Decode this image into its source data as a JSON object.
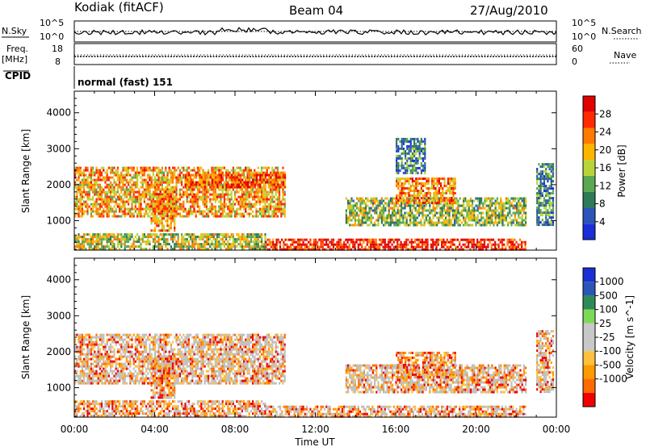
{
  "header": {
    "station": "Kodiak (fitACF)",
    "beam": "Beam 04",
    "date": "27/Aug/2010"
  },
  "top_panel": {
    "left_label_1": "N.Sky",
    "left_ticks_1": [
      "10^5",
      "10^0"
    ],
    "right_ticks_1": [
      "10^5",
      "10^0"
    ],
    "right_label_1": "N.Search",
    "left_label_2a": "Freq.",
    "left_label_2b": "[MHz]",
    "left_ticks_2": [
      "18",
      "8"
    ],
    "right_ticks_2": [
      "60",
      "0"
    ],
    "right_label_2": "Nave",
    "cpid_label": "CPID",
    "cpid_text": "normal (fast) 151"
  },
  "colors": {
    "power": [
      "#1a2fd6",
      "#2b55b8",
      "#2f7a57",
      "#5aa852",
      "#b8d437",
      "#ffb400",
      "#ff7a00",
      "#ff2a00",
      "#e00000"
    ],
    "velocity": [
      "#f00000",
      "#ff6a00",
      "#ff9a00",
      "#ffbf3f",
      "#c8c8c8",
      "#c8c8c8",
      "#7ed957",
      "#2e8b57",
      "#2a56b8",
      "#1a2fd6"
    ],
    "ground_scatter": "#bebebe"
  },
  "chart_data": [
    {
      "type": "heatmap",
      "title": "Power",
      "xlabel": "Time UT",
      "ylabel": "Slant Range [km]",
      "x_ticks": [
        "00:00",
        "04:00",
        "08:00",
        "12:00",
        "16:00",
        "20:00",
        "00:00"
      ],
      "xlim_hours": [
        0,
        24
      ],
      "ylim_km": [
        180,
        4600
      ],
      "y_ticks": [
        "1000",
        "2000",
        "3000",
        "4000"
      ],
      "y_tick_values": [
        1000,
        2000,
        3000,
        4000
      ],
      "colorbar_label": "Power [dB]",
      "colorbar_ticks": [
        "4",
        "8",
        "12",
        "16",
        "20",
        "24",
        "28"
      ],
      "scatter_regions": [
        {
          "t0": 0.0,
          "t1": 10.5,
          "r0": 1100,
          "r1": 2500,
          "level": 0.65
        },
        {
          "t0": 5.5,
          "t1": 10.5,
          "r0": 1900,
          "r1": 2300,
          "level": 0.8
        },
        {
          "t0": 3.8,
          "t1": 5.0,
          "r0": 700,
          "r1": 1900,
          "level": 0.7
        },
        {
          "t0": 0.0,
          "t1": 9.5,
          "r0": 200,
          "r1": 650,
          "level": 0.5
        },
        {
          "t0": 9.5,
          "t1": 22.5,
          "r0": 200,
          "r1": 500,
          "level": 0.9
        },
        {
          "t0": 13.5,
          "t1": 22.5,
          "r0": 900,
          "r1": 1650,
          "level": 0.45
        },
        {
          "t0": 16.0,
          "t1": 19.0,
          "r0": 1500,
          "r1": 2200,
          "level": 0.7
        },
        {
          "t0": 16.0,
          "t1": 17.5,
          "r0": 2300,
          "r1": 3300,
          "level": 0.25
        },
        {
          "t0": 23.0,
          "t1": 23.8,
          "r0": 900,
          "r1": 2600,
          "level": 0.3
        }
      ]
    },
    {
      "type": "heatmap",
      "title": "Velocity",
      "xlabel": "Time UT",
      "ylabel": "Slant Range [km]",
      "x_ticks": [
        "00:00",
        "04:00",
        "08:00",
        "12:00",
        "16:00",
        "20:00",
        "00:00"
      ],
      "xlim_hours": [
        0,
        24
      ],
      "ylim_km": [
        180,
        4600
      ],
      "y_ticks": [
        "1000",
        "2000",
        "3000",
        "4000"
      ],
      "y_tick_values": [
        1000,
        2000,
        3000,
        4000
      ],
      "colorbar_label": "Velocity [m s^-1]",
      "colorbar_ticks": [
        "1000",
        "500",
        "100",
        "25",
        "-25",
        "-100",
        "-500",
        "-1000"
      ],
      "scatter_regions": [
        {
          "t0": 0.0,
          "t1": 10.5,
          "r0": 1100,
          "r1": 2500,
          "level": 0.5
        },
        {
          "t0": 3.8,
          "t1": 5.0,
          "r0": 700,
          "r1": 1900,
          "level": 0.3
        },
        {
          "t0": 0.0,
          "t1": 9.5,
          "r0": 200,
          "r1": 650,
          "level": 0.35
        },
        {
          "t0": 9.5,
          "t1": 22.5,
          "r0": 200,
          "r1": 500,
          "level": 0.4
        },
        {
          "t0": 13.5,
          "t1": 22.5,
          "r0": 900,
          "r1": 1650,
          "level": 0.5
        },
        {
          "t0": 16.0,
          "t1": 19.0,
          "r0": 1300,
          "r1": 2000,
          "level": 0.2
        },
        {
          "t0": 23.0,
          "t1": 23.8,
          "r0": 900,
          "r1": 2600,
          "level": 0.5
        }
      ]
    }
  ]
}
